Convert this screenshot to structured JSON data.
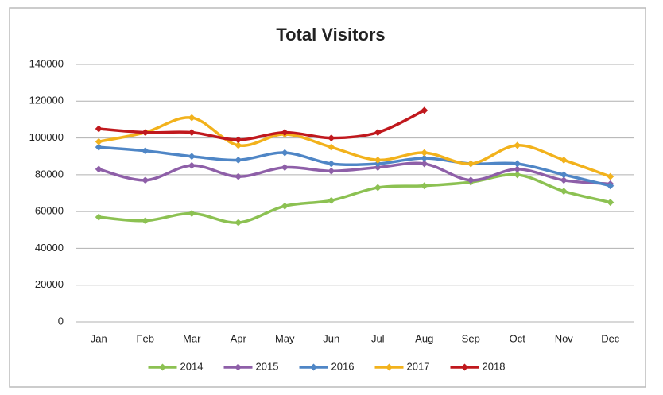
{
  "chart_data": {
    "type": "line",
    "title": "Total Visitors",
    "categories": [
      "Jan",
      "Feb",
      "Mar",
      "Apr",
      "May",
      "Jun",
      "Jul",
      "Aug",
      "Sep",
      "Oct",
      "Nov",
      "Dec"
    ],
    "series": [
      {
        "name": "2014",
        "color": "#8cc152",
        "values": [
          57000,
          55000,
          59000,
          54000,
          63000,
          66000,
          73000,
          74000,
          76000,
          80000,
          71000,
          65000
        ]
      },
      {
        "name": "2015",
        "color": "#8e5fa8",
        "values": [
          83000,
          77000,
          85000,
          79000,
          84000,
          82000,
          84000,
          86000,
          77000,
          83000,
          77000,
          75000
        ]
      },
      {
        "name": "2016",
        "color": "#4f86c6",
        "values": [
          95000,
          93000,
          90000,
          88000,
          92000,
          86000,
          86000,
          89000,
          86000,
          86000,
          80000,
          74000
        ]
      },
      {
        "name": "2017",
        "color": "#f2b21c",
        "values": [
          98000,
          103000,
          111000,
          96000,
          102000,
          95000,
          88000,
          92000,
          86000,
          96000,
          88000,
          79000
        ]
      },
      {
        "name": "2018",
        "color": "#c0181d",
        "values": [
          105000,
          103000,
          103000,
          99000,
          103000,
          100000,
          103000,
          115000,
          null,
          null,
          null,
          null
        ]
      }
    ],
    "ylim": [
      0,
      140000
    ],
    "yticks": [
      0,
      20000,
      40000,
      60000,
      80000,
      100000,
      120000,
      140000
    ],
    "grid": true,
    "smooth": true,
    "legend": "bottom"
  }
}
